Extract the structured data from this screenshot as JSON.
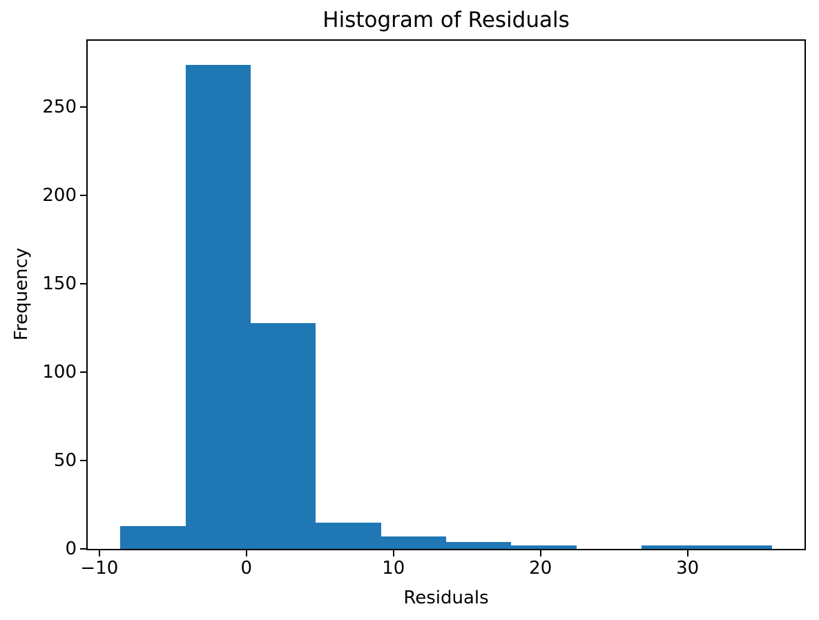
{
  "figure": {
    "background": "#ffffff",
    "spine_color": "#000000",
    "text_color": "#000000"
  },
  "chart_data": {
    "type": "bar",
    "subtype": "histogram",
    "title": "Histogram of Residuals",
    "xlabel": "Residuals",
    "ylabel": "Frequency",
    "bar_color": "#1f77b4",
    "bin_edges": [
      -8.57,
      -4.14,
      0.29,
      4.72,
      9.15,
      13.58,
      18.01,
      22.44,
      26.87,
      31.3,
      35.73
    ],
    "counts": [
      13,
      274,
      128,
      15,
      7,
      4,
      2,
      0,
      2,
      2
    ],
    "xlim": [
      -10.79,
      37.95
    ],
    "ylim": [
      0,
      287.7
    ],
    "x_ticks": [
      {
        "value": -10,
        "label": "−10"
      },
      {
        "value": 0,
        "label": "0"
      },
      {
        "value": 10,
        "label": "10"
      },
      {
        "value": 20,
        "label": "20"
      },
      {
        "value": 30,
        "label": "30"
      }
    ],
    "y_ticks": [
      {
        "value": 0,
        "label": "0"
      },
      {
        "value": 50,
        "label": "50"
      },
      {
        "value": 100,
        "label": "100"
      },
      {
        "value": 150,
        "label": "150"
      },
      {
        "value": 200,
        "label": "200"
      },
      {
        "value": 250,
        "label": "250"
      }
    ],
    "grid": false,
    "legend": null
  }
}
